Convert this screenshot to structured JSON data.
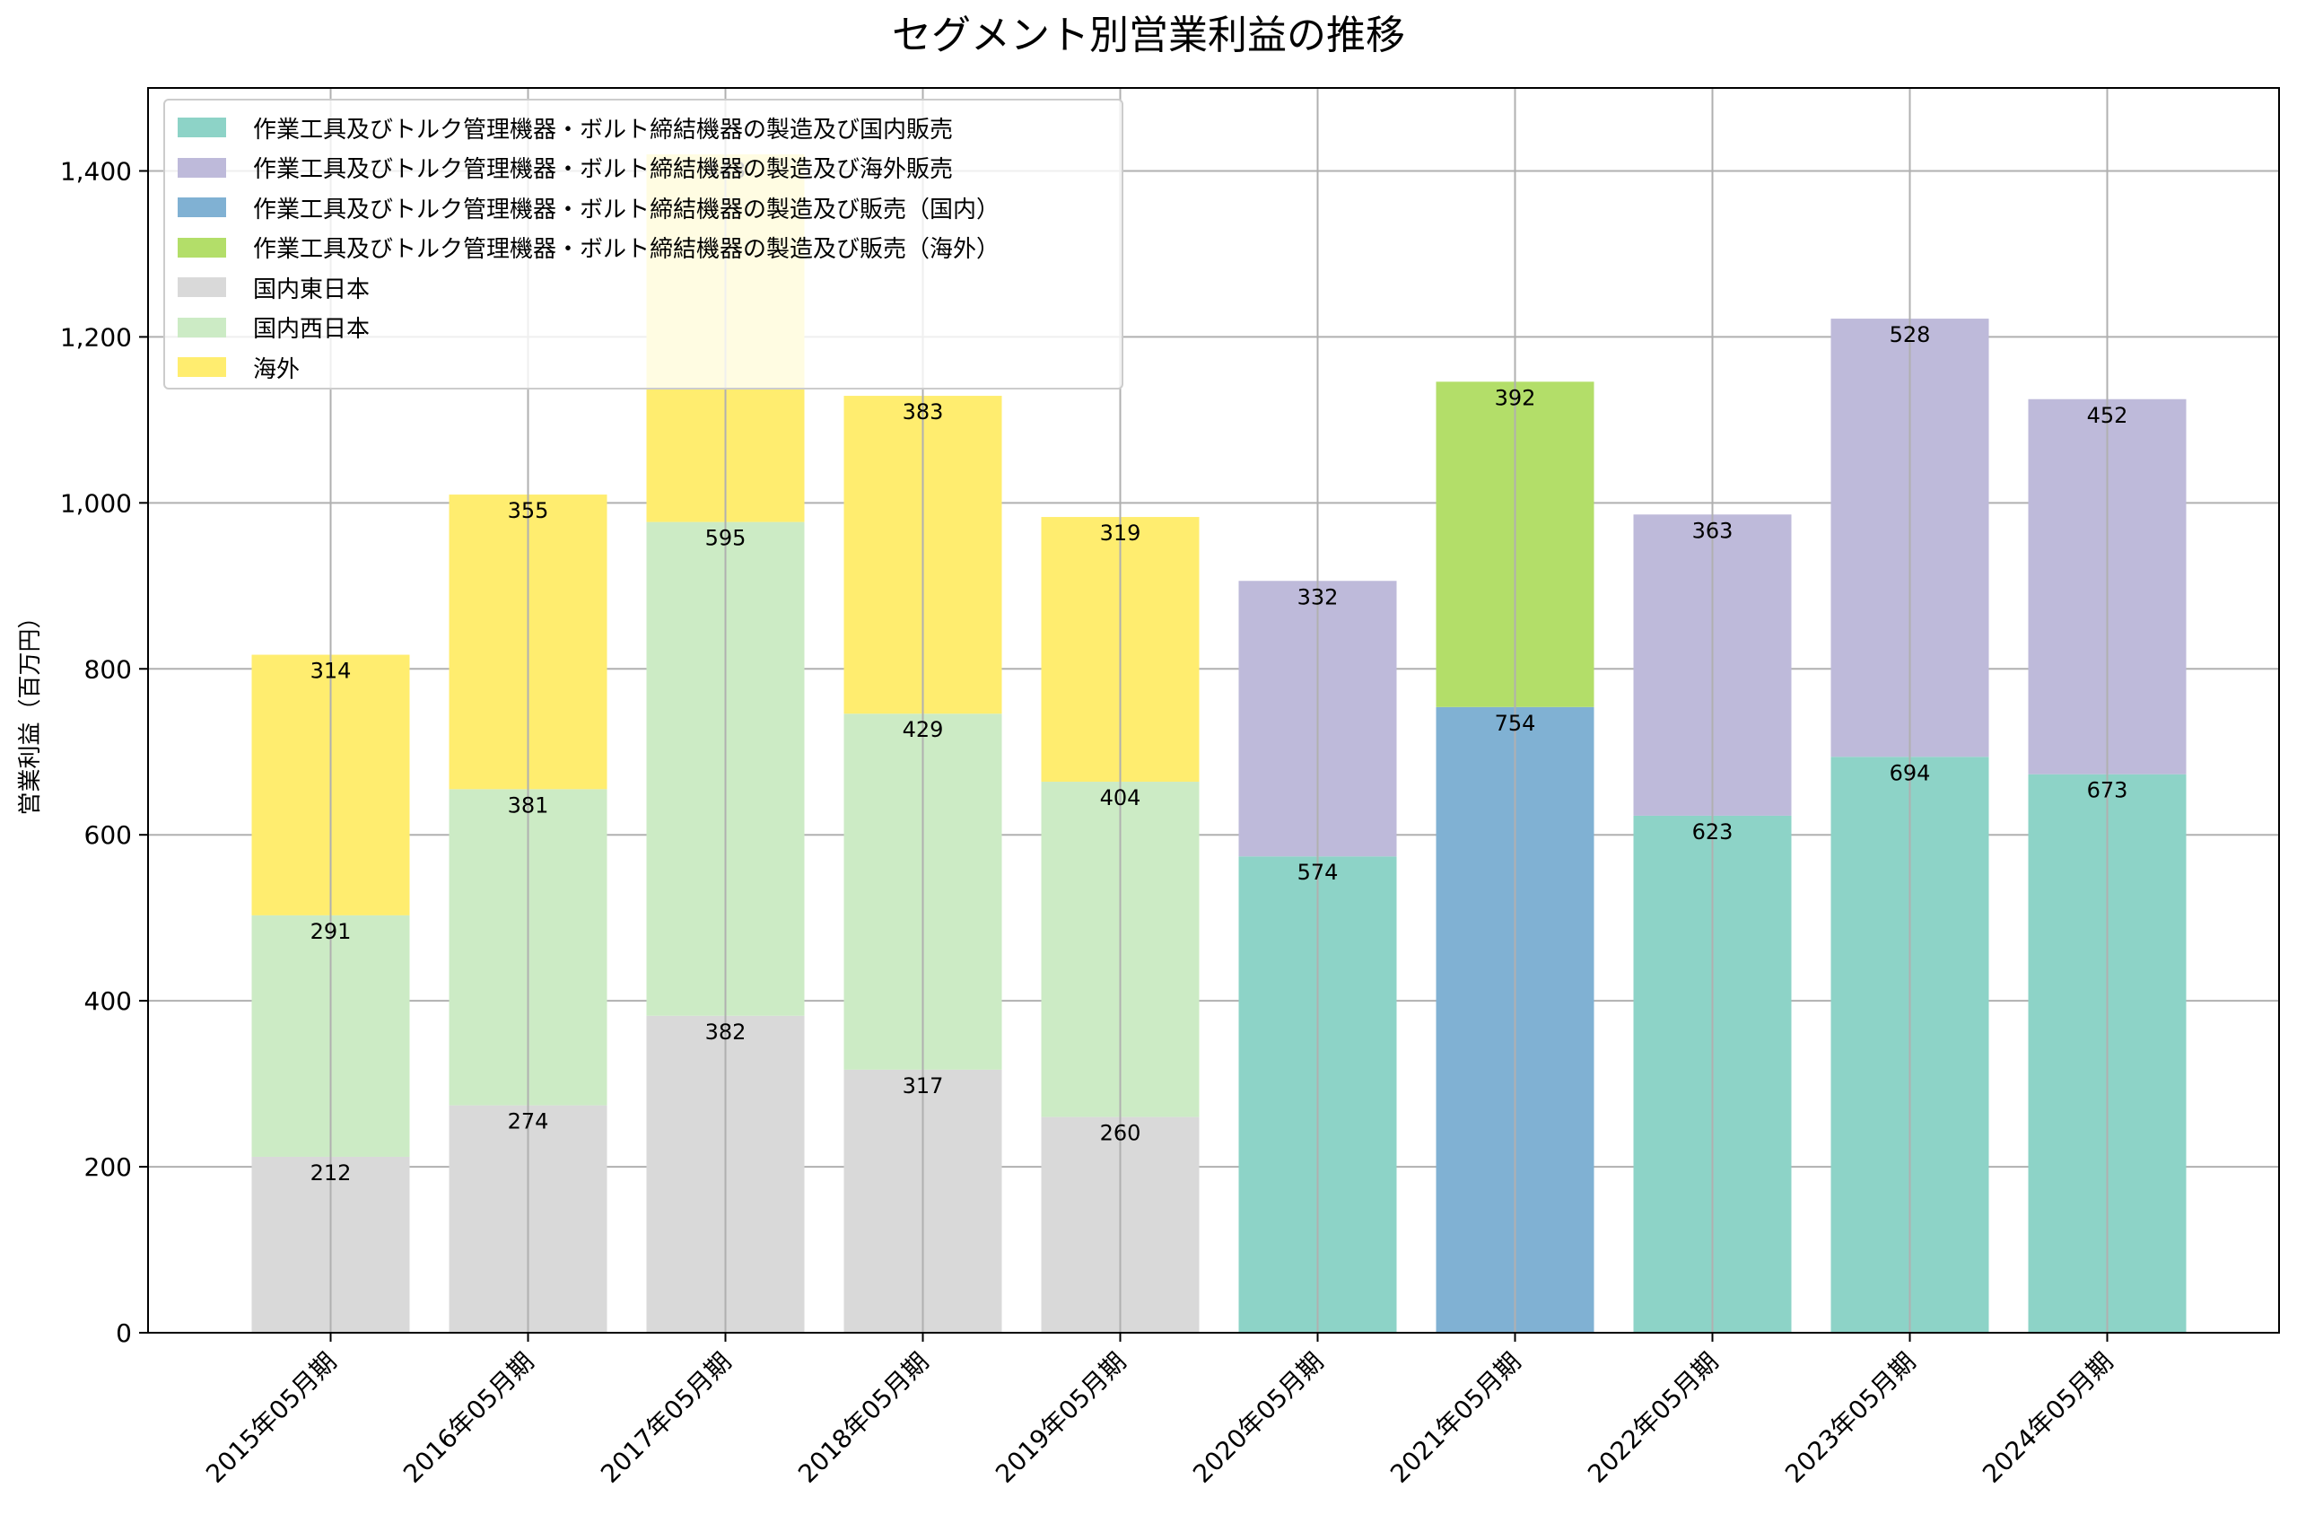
{
  "chart_data": {
    "type": "bar",
    "stacked": true,
    "title": "セグメント別営業利益の推移",
    "xlabel": "",
    "ylabel": "営業利益（百万円）",
    "ylim": [
      0,
      1500
    ],
    "yticks": [
      0,
      200,
      400,
      600,
      800,
      1000,
      1200,
      1400
    ],
    "ytick_labels": [
      "0",
      "200",
      "400",
      "600",
      "800",
      "1,000",
      "1,200",
      "1,400"
    ],
    "grid": true,
    "legend_position": "top-left",
    "categories": [
      "2015年05月期",
      "2016年05月期",
      "2017年05月期",
      "2018年05月期",
      "2019年05月期",
      "2020年05月期",
      "2021年05月期",
      "2022年05月期",
      "2023年05月期",
      "2024年05月期"
    ],
    "series": [
      {
        "name": "作業工具及びトルク管理機器・ボルト締結機器の製造及び国内販売",
        "color": "#8dd3c7",
        "values": [
          null,
          null,
          null,
          null,
          null,
          574,
          null,
          623,
          694,
          673
        ]
      },
      {
        "name": "作業工具及びトルク管理機器・ボルト締結機器の製造及び海外販売",
        "color": "#bebada",
        "values": [
          null,
          null,
          null,
          null,
          null,
          332,
          null,
          363,
          528,
          452
        ]
      },
      {
        "name": "作業工具及びトルク管理機器・ボルト締結機器の製造及び販売（国内）",
        "color": "#80b1d3",
        "values": [
          null,
          null,
          null,
          null,
          null,
          null,
          754,
          null,
          null,
          null
        ]
      },
      {
        "name": "作業工具及びトルク管理機器・ボルト締結機器の製造及び販売（海外）",
        "color": "#b3de69",
        "values": [
          null,
          null,
          null,
          null,
          null,
          null,
          392,
          null,
          null,
          null
        ]
      },
      {
        "name": "国内東日本",
        "color": "#d9d9d9",
        "values": [
          212,
          274,
          382,
          317,
          260,
          null,
          null,
          null,
          null,
          null
        ]
      },
      {
        "name": "国内西日本",
        "color": "#ccebc5",
        "values": [
          291,
          381,
          595,
          429,
          404,
          null,
          null,
          null,
          null,
          null
        ]
      },
      {
        "name": "海外",
        "color": "#ffed6f",
        "values": [
          314,
          355,
          443,
          383,
          319,
          null,
          null,
          null,
          null,
          null
        ]
      }
    ]
  }
}
